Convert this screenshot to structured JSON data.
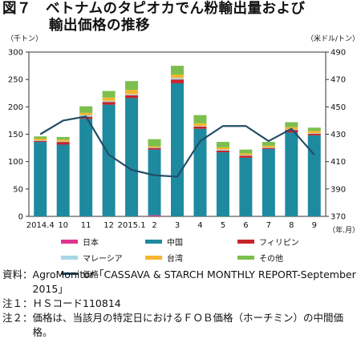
{
  "title": {
    "line1": "図７　ベトナムのタピオカでん粉輸出量および",
    "line2": "輸出価格の推移"
  },
  "chart_data": {
    "type": "bar",
    "stacked": true,
    "categories": [
      "2014.4",
      "10",
      "11",
      "12",
      "2015.1",
      "2",
      "3",
      "4",
      "5",
      "6",
      "7",
      "8",
      "9"
    ],
    "left_axis_unit": "（千トン）",
    "right_axis_unit": "（米ドル/トン）",
    "x_axis_unit": "（年.月）",
    "ylim_left": [
      0,
      300
    ],
    "ylim_right": [
      370,
      490
    ],
    "left_ticks": [
      "0",
      "50",
      "100",
      "150",
      "200",
      "250",
      "300"
    ],
    "right_ticks": [
      "370",
      "390",
      "410",
      "430",
      "450",
      "470",
      "490"
    ],
    "grid": false,
    "legend_position": "bottom",
    "series": [
      {
        "name": "日本",
        "color": "#e0338d",
        "values": [
          0,
          0,
          0,
          0,
          0,
          2,
          0,
          0,
          0,
          0,
          0,
          0,
          0
        ]
      },
      {
        "name": "中国",
        "color": "#1e8aa0",
        "values": [
          136,
          131,
          178,
          204,
          216,
          120,
          243,
          160,
          117,
          107,
          123,
          153,
          148
        ]
      },
      {
        "name": "フィリピン",
        "color": "#c8232c",
        "values": [
          2,
          5,
          4,
          5,
          5,
          3,
          7,
          4,
          3,
          4,
          2,
          5,
          3
        ]
      },
      {
        "name": "マレーシア",
        "color": "#a9d6e4",
        "values": [
          1,
          1,
          3,
          2,
          2,
          1,
          3,
          1,
          2,
          1,
          1,
          1,
          1
        ]
      },
      {
        "name": "台湾",
        "color": "#f5b52e",
        "values": [
          3,
          3,
          4,
          6,
          8,
          2,
          6,
          5,
          4,
          3,
          3,
          4,
          4
        ]
      },
      {
        "name": "その他",
        "color": "#7cbf4c",
        "values": [
          4,
          5,
          12,
          12,
          16,
          13,
          16,
          15,
          10,
          7,
          7,
          9,
          6
        ]
      }
    ],
    "line_series": {
      "name": "価格",
      "color": "#234e66",
      "axis": "right",
      "values": [
        430,
        440,
        443,
        415,
        404,
        400,
        399,
        425,
        436,
        436,
        425,
        434,
        415
      ]
    }
  },
  "notes": [
    {
      "label": "資料：",
      "text": "AgroMonitor「CASSAVA & STARCH MONTHLY REPORT-September 2015」"
    },
    {
      "label": "注１：",
      "text": "ＨＳコード110814"
    },
    {
      "label": "注２：",
      "text": "価格は、当該月の特定日におけるＦＯＢ価格（ホーチミン）の中間価格。"
    }
  ]
}
